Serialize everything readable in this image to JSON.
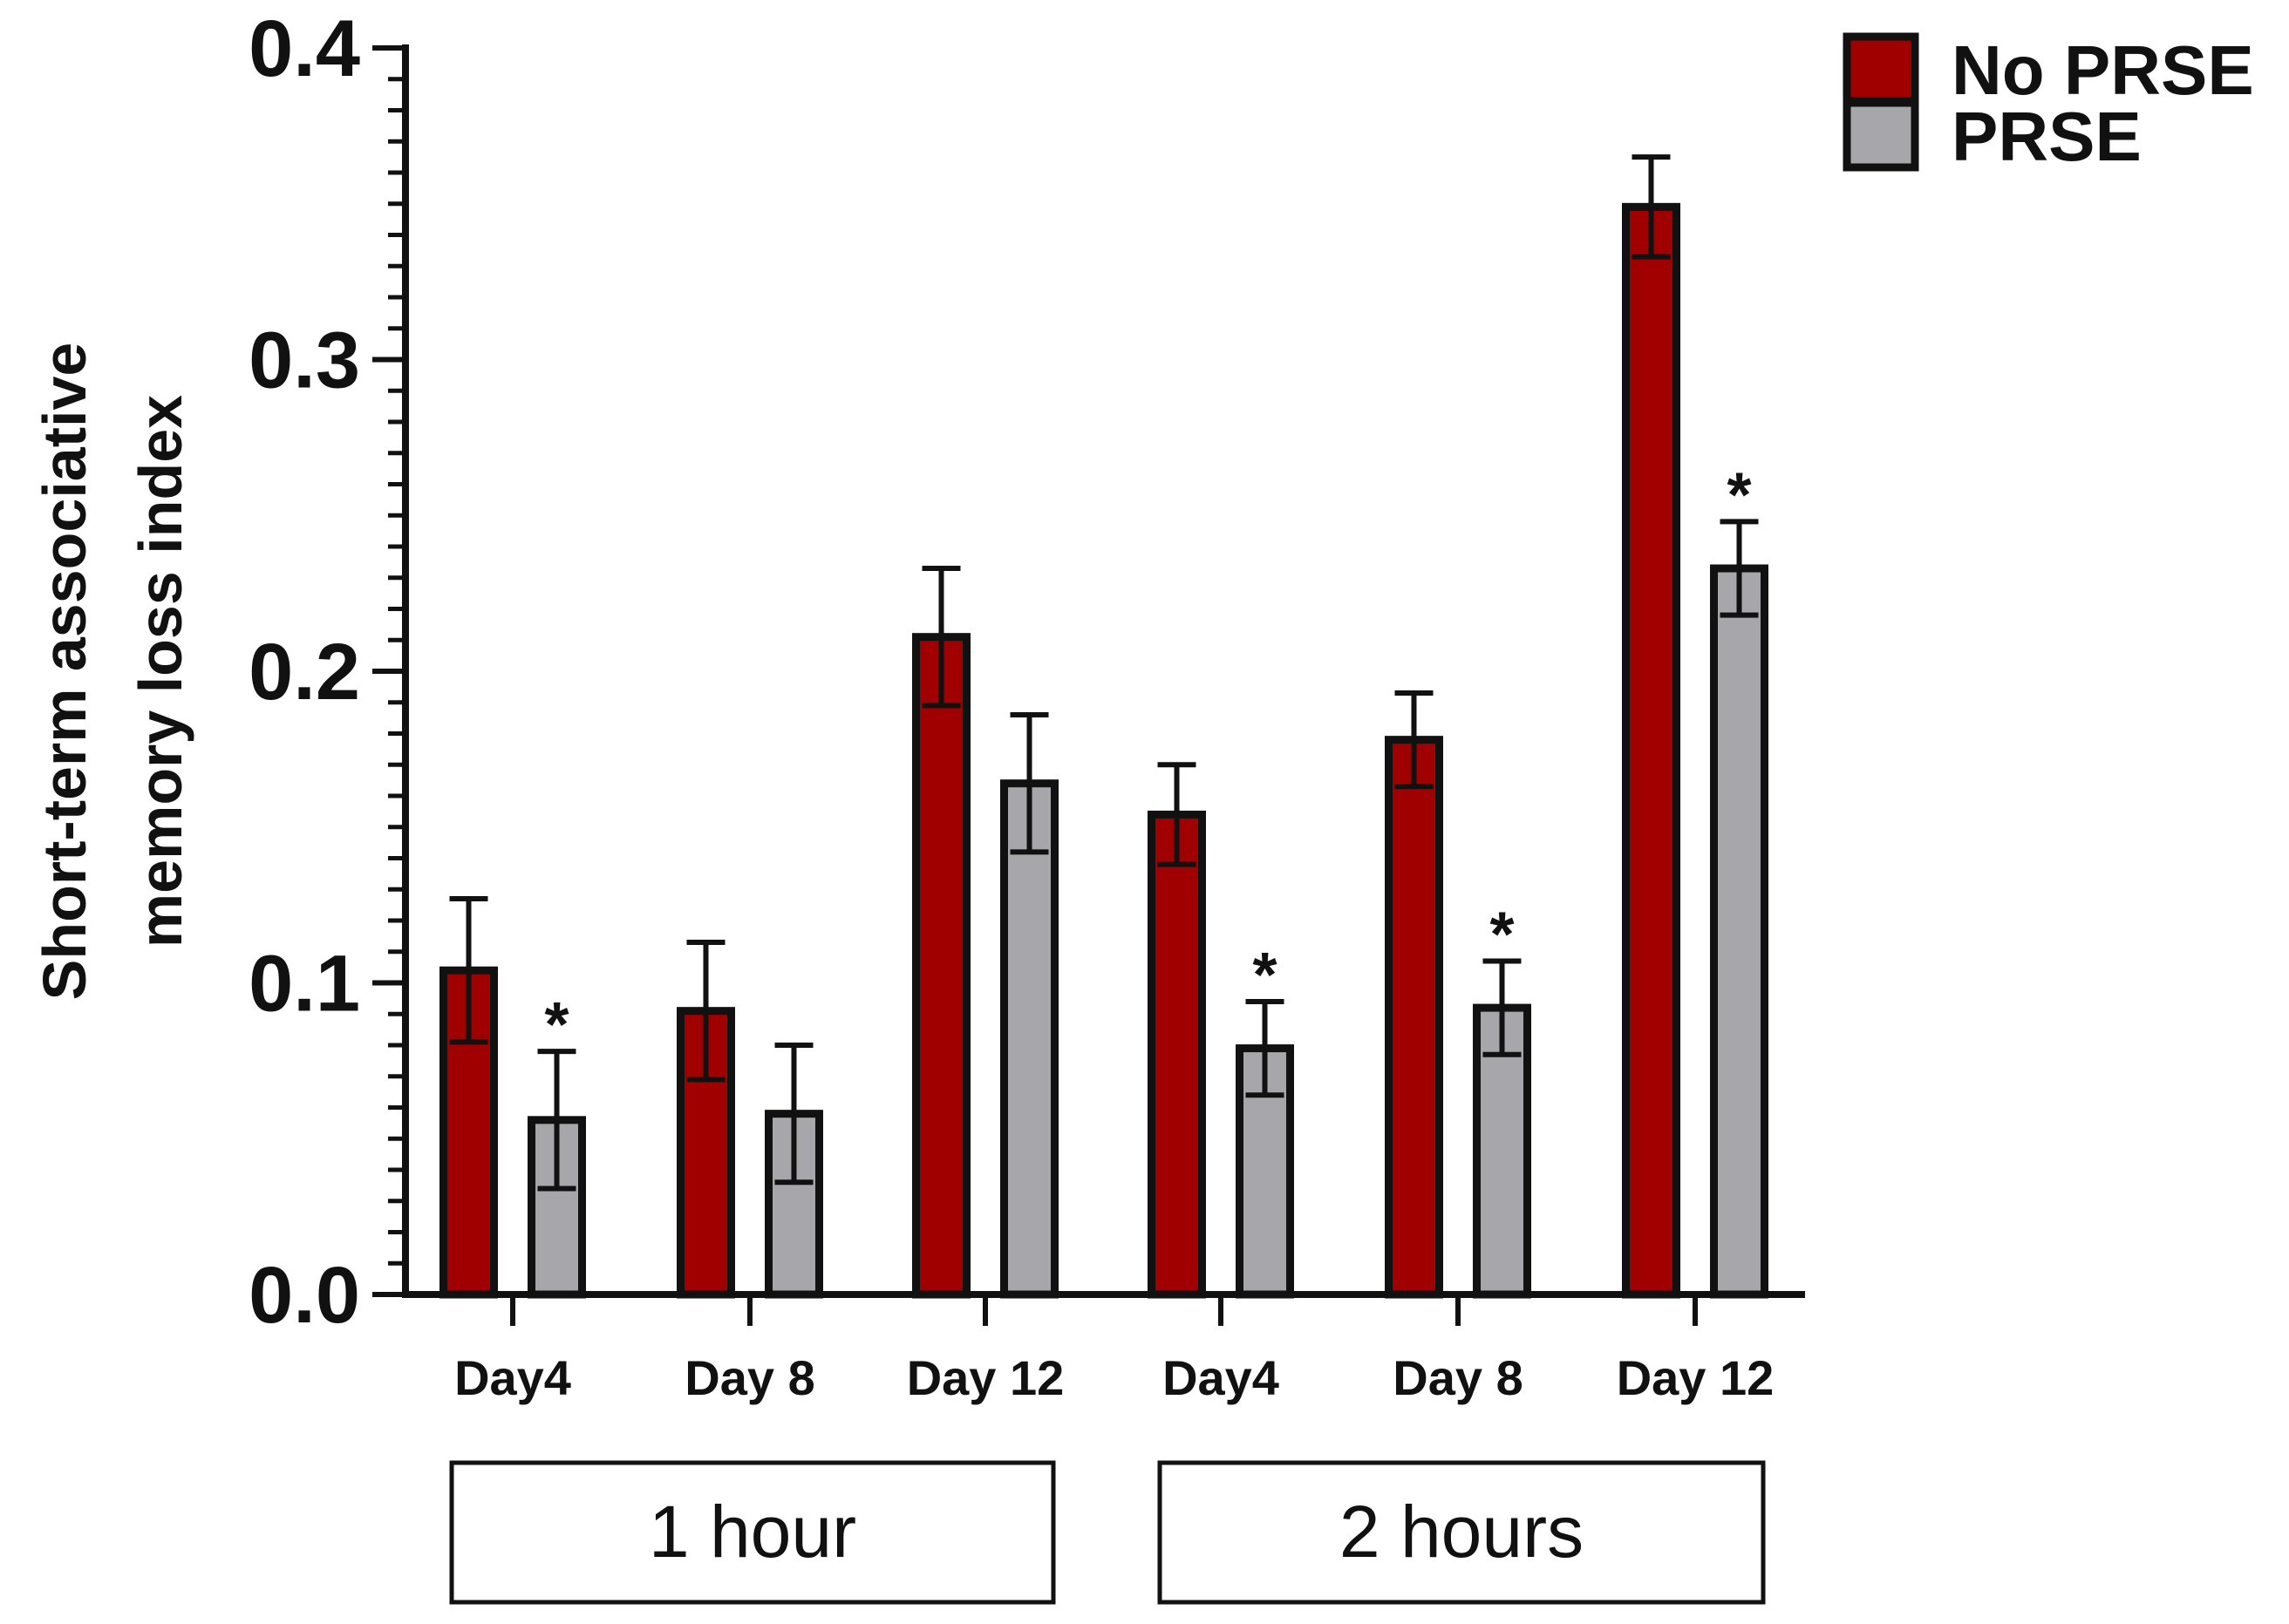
{
  "chart_data": {
    "type": "bar",
    "ylabel_lines": [
      "Short-term associative",
      "memory loss index"
    ],
    "ylim": [
      0,
      0.4
    ],
    "yticks": [
      "0.0",
      "0.1",
      "0.2",
      "0.3",
      "0.4"
    ],
    "categories": [
      "Day4",
      "Day 8",
      "Day 12",
      "Day4",
      "Day 8",
      "Day 12"
    ],
    "groups": [
      {
        "label": "1 hour",
        "categories": [
          0,
          1,
          2
        ]
      },
      {
        "label": "2 hours",
        "categories": [
          3,
          4,
          5
        ]
      }
    ],
    "series": [
      {
        "name": "No PRSE",
        "color": "#a00000",
        "values": [
          0.104,
          0.091,
          0.211,
          0.154,
          0.178,
          0.349
        ],
        "errors": [
          0.023,
          0.022,
          0.022,
          0.016,
          0.015,
          0.016
        ],
        "significance": [
          "",
          "",
          "",
          "",
          "",
          ""
        ]
      },
      {
        "name": "PRSE",
        "color": "#a7a7ab",
        "values": [
          0.056,
          0.058,
          0.164,
          0.079,
          0.092,
          0.233
        ],
        "errors": [
          0.022,
          0.022,
          0.022,
          0.015,
          0.015,
          0.015
        ],
        "significance": [
          "*",
          "",
          "",
          "*",
          "*",
          "*"
        ]
      }
    ],
    "legend_position": "top-right",
    "grid": false
  }
}
